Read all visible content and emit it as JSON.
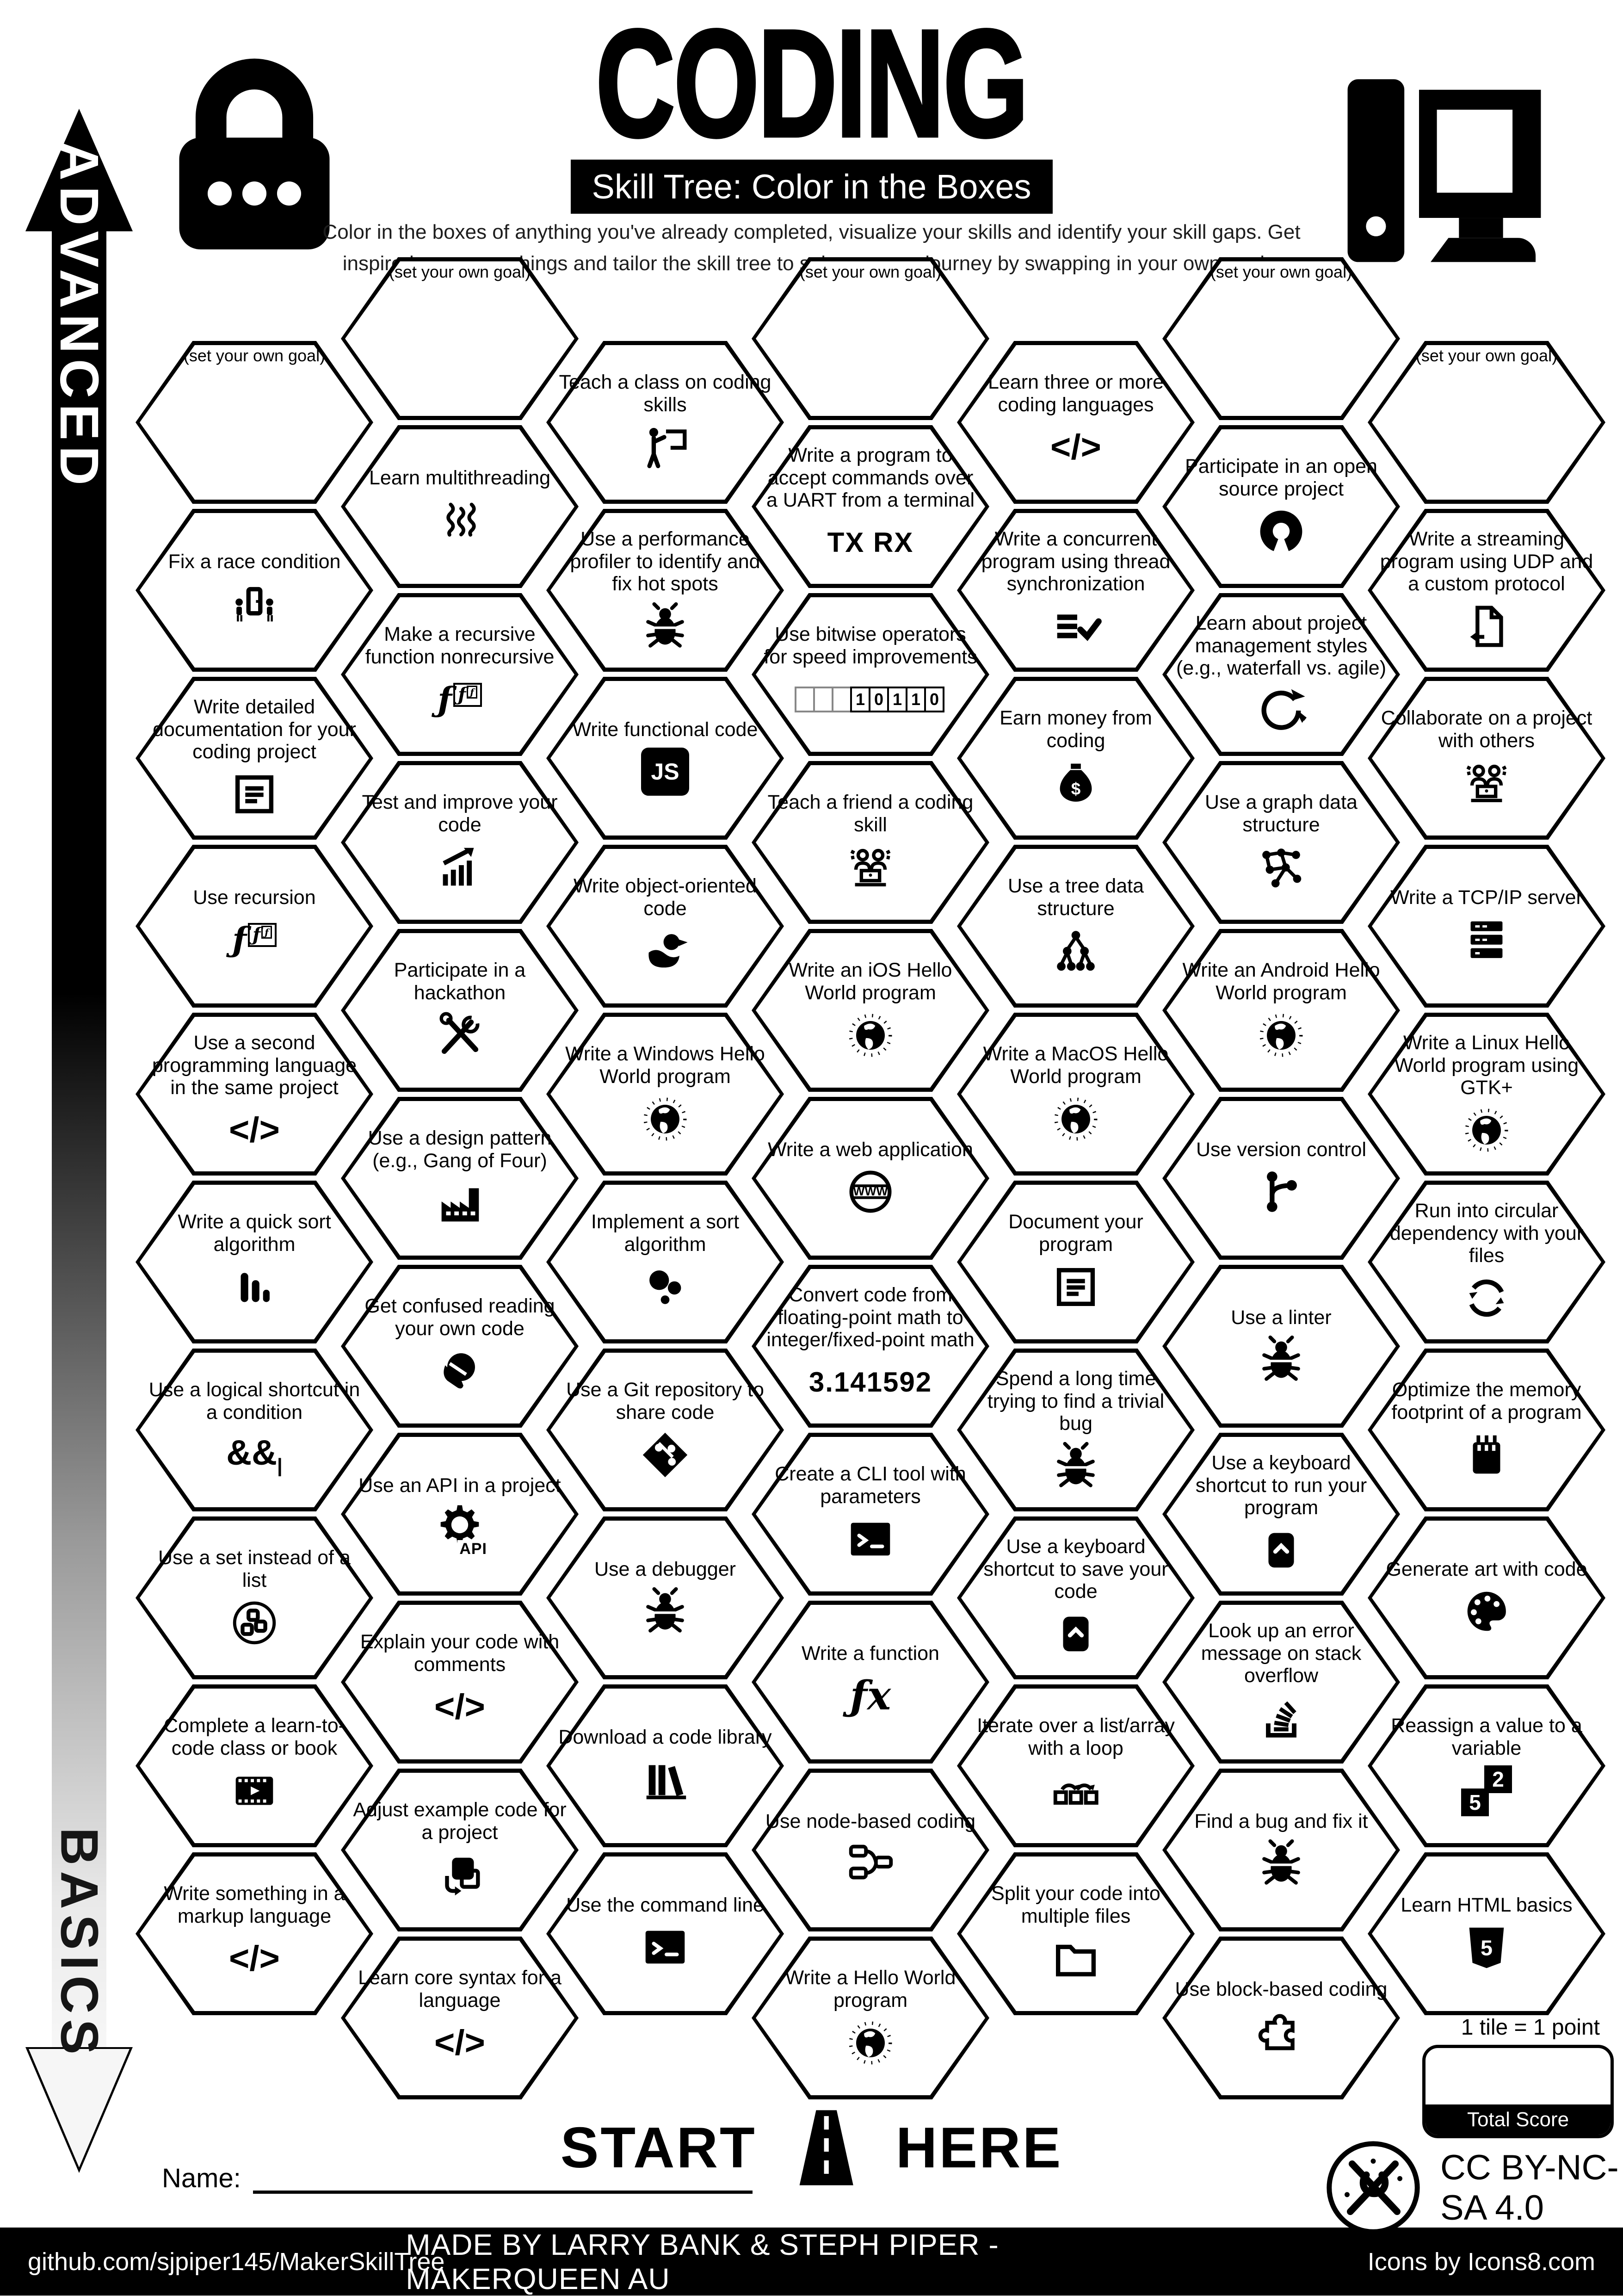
{
  "header": {
    "title": "CODING",
    "subtitle": "Skill Tree: Color in the Boxes",
    "description": "Color in the boxes of anything you've already completed, visualize your skills and identify your skill gaps.  Get inspired to try new things and tailor the skill tree to suit your own journey by swapping in your own goals.",
    "left_icon": "padlock-icon",
    "right_icon": "computer-icon"
  },
  "axis": {
    "top_label": "ADVANCED",
    "bottom_label": "BASICS"
  },
  "start_marker": {
    "left": "START",
    "right": "HERE",
    "icon": "road-icon"
  },
  "name_field": {
    "label": "Name:"
  },
  "scoring": {
    "note": "1 tile = 1 point",
    "box_label": "Total Score"
  },
  "license": {
    "text": "CC BY-NC-SA 4.0",
    "icon": "maker-logo-icon"
  },
  "footer": {
    "left": "github.com/sjpiper145/MakerSkillTree",
    "center": "MADE BY LARRY BANK & STEPH PIPER  -  MAKERQUEEN AU",
    "right": "Icons by Icons8.com"
  },
  "colors": {
    "ink": "#000000",
    "paper": "#ffffff"
  },
  "tiles": [
    {
      "col": 0,
      "row": 0,
      "label": "(set your own goal)",
      "icon": null
    },
    {
      "col": 0,
      "row": 1,
      "label": "Fix a race condition",
      "icon": "race-condition-icon"
    },
    {
      "col": 0,
      "row": 2,
      "label": "Write detailed documentation for your coding project",
      "icon": "document-icon"
    },
    {
      "col": 0,
      "row": 3,
      "label": "Use recursion",
      "icon": "recursion-f-icon"
    },
    {
      "col": 0,
      "row": 4,
      "label": "Use a second programming language in the same project",
      "icon": "code-tag-icon"
    },
    {
      "col": 0,
      "row": 5,
      "label": "Write a quick sort algorithm",
      "icon": "quicksort-bars-icon"
    },
    {
      "col": 0,
      "row": 6,
      "label": "Use a logical shortcut in a condition",
      "icon": "logical-operators-icon"
    },
    {
      "col": 0,
      "row": 7,
      "label": "Use a set instead of a list",
      "icon": "set-circle-icon"
    },
    {
      "col": 0,
      "row": 8,
      "label": "Complete a learn-to-code class or book",
      "icon": "video-lesson-icon"
    },
    {
      "col": 0,
      "row": 9,
      "label": "Write something in a markup language",
      "icon": "code-tag-icon"
    },
    {
      "col": 1,
      "row": 0,
      "label": "(set your own goal)",
      "icon": null
    },
    {
      "col": 1,
      "row": 1,
      "label": "Learn multithreading",
      "icon": "threads-icon"
    },
    {
      "col": 1,
      "row": 2,
      "label": "Make a recursive function nonrecursive",
      "icon": "recursion-f-icon"
    },
    {
      "col": 1,
      "row": 3,
      "label": "Test and improve your code",
      "icon": "chart-up-icon"
    },
    {
      "col": 1,
      "row": 4,
      "label": "Participate in a hackathon",
      "icon": "crossed-tools-icon"
    },
    {
      "col": 1,
      "row": 5,
      "label": "Use a design pattern (e.g., Gang of Four)",
      "icon": "factory-icon"
    },
    {
      "col": 1,
      "row": 6,
      "label": "Get confused reading your own code",
      "icon": "facepalm-icon"
    },
    {
      "col": 1,
      "row": 7,
      "label": "Use an API in a project",
      "icon": "api-gear-icon"
    },
    {
      "col": 1,
      "row": 8,
      "label": "Explain your code with comments",
      "icon": "code-tag-icon"
    },
    {
      "col": 1,
      "row": 9,
      "label": "Adjust example code for a project",
      "icon": "adjust-code-icon"
    },
    {
      "col": 1,
      "row": 10,
      "label": "Learn core syntax for a language",
      "icon": "code-tag-icon"
    },
    {
      "col": 2,
      "row": 0,
      "label": "Teach a class on coding skills",
      "icon": "teacher-icon"
    },
    {
      "col": 2,
      "row": 1,
      "label": "Use a performance profiler to identify and fix hot spots",
      "icon": "bug-icon"
    },
    {
      "col": 2,
      "row": 2,
      "label": "Write functional code",
      "icon": "js-badge-icon"
    },
    {
      "col": 2,
      "row": 3,
      "label": "Write object-oriented code",
      "icon": "rubber-duck-icon"
    },
    {
      "col": 2,
      "row": 4,
      "label": "Write a Windows Hello World program",
      "icon": "hello-world-globe-icon"
    },
    {
      "col": 2,
      "row": 5,
      "label": "Implement a sort algorithm",
      "icon": "sort-dots-icon"
    },
    {
      "col": 2,
      "row": 6,
      "label": "Use a Git repository to share code",
      "icon": "git-diamond-icon"
    },
    {
      "col": 2,
      "row": 7,
      "label": "Use a debugger",
      "icon": "bug-icon"
    },
    {
      "col": 2,
      "row": 8,
      "label": "Download a code library",
      "icon": "books-icon"
    },
    {
      "col": 2,
      "row": 9,
      "label": "Use the command line",
      "icon": "terminal-icon"
    },
    {
      "col": 3,
      "row": 0,
      "label": "(set your own goal)",
      "icon": null
    },
    {
      "col": 3,
      "row": 1,
      "label": "Write a program to accept commands over a UART from a terminal",
      "icon": "tx-rx-icon"
    },
    {
      "col": 3,
      "row": 2,
      "label": "Use bitwise operators for speed improvements",
      "icon": "bitwise-bits-icon"
    },
    {
      "col": 3,
      "row": 3,
      "label": "Teach a friend a coding skill",
      "icon": "pair-coding-icon"
    },
    {
      "col": 3,
      "row": 4,
      "label": "Write an iOS Hello World program",
      "icon": "hello-world-globe-icon"
    },
    {
      "col": 3,
      "row": 5,
      "label": "Write a web application",
      "icon": "www-globe-icon"
    },
    {
      "col": 3,
      "row": 6,
      "label": "Convert code from floating-point math to integer/fixed-point math",
      "icon": "pi-number-icon"
    },
    {
      "col": 3,
      "row": 7,
      "label": "Create a CLI tool with parameters",
      "icon": "terminal-icon"
    },
    {
      "col": 3,
      "row": 8,
      "label": "Write a function",
      "icon": "fx-icon"
    },
    {
      "col": 3,
      "row": 9,
      "label": "Use node-based coding",
      "icon": "node-graph-icon"
    },
    {
      "col": 3,
      "row": 10,
      "label": "Write a Hello World program",
      "icon": "hello-world-globe-icon"
    },
    {
      "col": 4,
      "row": 0,
      "label": "Learn three or more coding languages",
      "icon": "code-tag-icon"
    },
    {
      "col": 4,
      "row": 1,
      "label": "Write a concurrent program using thread synchronization",
      "icon": "sync-check-icon"
    },
    {
      "col": 4,
      "row": 2,
      "label": "Earn money from coding",
      "icon": "money-bag-icon"
    },
    {
      "col": 4,
      "row": 3,
      "label": "Use a tree data structure",
      "icon": "tree-structure-icon"
    },
    {
      "col": 4,
      "row": 4,
      "label": "Write a MacOS Hello World program",
      "icon": "hello-world-globe-icon"
    },
    {
      "col": 4,
      "row": 5,
      "label": "Document your program",
      "icon": "document-icon"
    },
    {
      "col": 4,
      "row": 6,
      "label": "Spend a long time trying to find a trivial bug",
      "icon": "bug-icon"
    },
    {
      "col": 4,
      "row": 7,
      "label": "Use a keyboard shortcut to save your code",
      "icon": "key-shortcut-icon"
    },
    {
      "col": 4,
      "row": 8,
      "label": "Iterate over a list/array with a loop",
      "icon": "loop-iterate-icon"
    },
    {
      "col": 4,
      "row": 9,
      "label": "Split your code into multiple files",
      "icon": "folder-icon"
    },
    {
      "col": 5,
      "row": 0,
      "label": "(set your own goal)",
      "icon": null
    },
    {
      "col": 5,
      "row": 1,
      "label": "Participate in an open source project",
      "icon": "open-source-icon"
    },
    {
      "col": 5,
      "row": 2,
      "label": "Learn about project management styles (e.g., waterfall vs. agile)",
      "icon": "agile-cycle-icon"
    },
    {
      "col": 5,
      "row": 3,
      "label": "Use a graph data structure",
      "icon": "graph-structure-icon"
    },
    {
      "col": 5,
      "row": 4,
      "label": "Write an Android Hello World program",
      "icon": "hello-world-globe-icon"
    },
    {
      "col": 5,
      "row": 5,
      "label": "Use version control",
      "icon": "branch-icon"
    },
    {
      "col": 5,
      "row": 6,
      "label": "Use a linter",
      "icon": "bug-icon"
    },
    {
      "col": 5,
      "row": 7,
      "label": "Use a keyboard shortcut to run your program",
      "icon": "key-shortcut-icon"
    },
    {
      "col": 5,
      "row": 8,
      "label": "Look up an error message on stack overflow",
      "icon": "stack-overflow-icon"
    },
    {
      "col": 5,
      "row": 9,
      "label": "Find a bug and fix it",
      "icon": "bug-icon"
    },
    {
      "col": 5,
      "row": 10,
      "label": "Use block-based coding",
      "icon": "puzzle-icon"
    },
    {
      "col": 6,
      "row": 0,
      "label": "(set your own goal)",
      "icon": null
    },
    {
      "col": 6,
      "row": 1,
      "label": "Write a streaming program using UDP and a custom protocol",
      "icon": "file-transfer-icon"
    },
    {
      "col": 6,
      "row": 2,
      "label": "Collaborate on a project with others",
      "icon": "pair-coding-icon"
    },
    {
      "col": 6,
      "row": 3,
      "label": "Write a TCP/IP server",
      "icon": "server-icon"
    },
    {
      "col": 6,
      "row": 4,
      "label": "Write a Linux Hello World program using GTK+",
      "icon": "hello-world-globe-icon"
    },
    {
      "col": 6,
      "row": 5,
      "label": "Run into circular dependency with your files",
      "icon": "circular-arrows-icon"
    },
    {
      "col": 6,
      "row": 6,
      "label": "Optimize the memory footprint of a program",
      "icon": "memory-card-icon"
    },
    {
      "col": 6,
      "row": 7,
      "label": "Generate art with code",
      "icon": "palette-icon"
    },
    {
      "col": 6,
      "row": 8,
      "label": "Reassign a value to a variable",
      "icon": "reassign-value-icon"
    },
    {
      "col": 6,
      "row": 9,
      "label": "Learn HTML basics",
      "icon": "html5-icon"
    }
  ]
}
